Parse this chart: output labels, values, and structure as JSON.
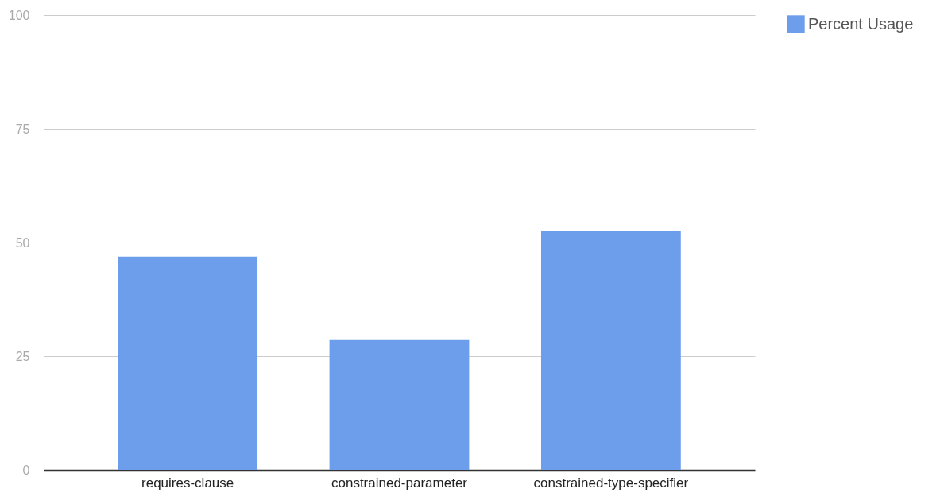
{
  "chart_data": {
    "type": "bar",
    "categories": [
      "requires-clause",
      "constrained-parameter",
      "constrained-type-specifier"
    ],
    "series": [
      {
        "name": "Percent Usage",
        "color": "#6d9eeb",
        "values": [
          46.9,
          28.7,
          52.6
        ]
      }
    ],
    "ylim": [
      0,
      100
    ],
    "yticks": [
      0,
      25,
      50,
      75,
      100
    ],
    "grid": "y",
    "legend": "top right"
  }
}
